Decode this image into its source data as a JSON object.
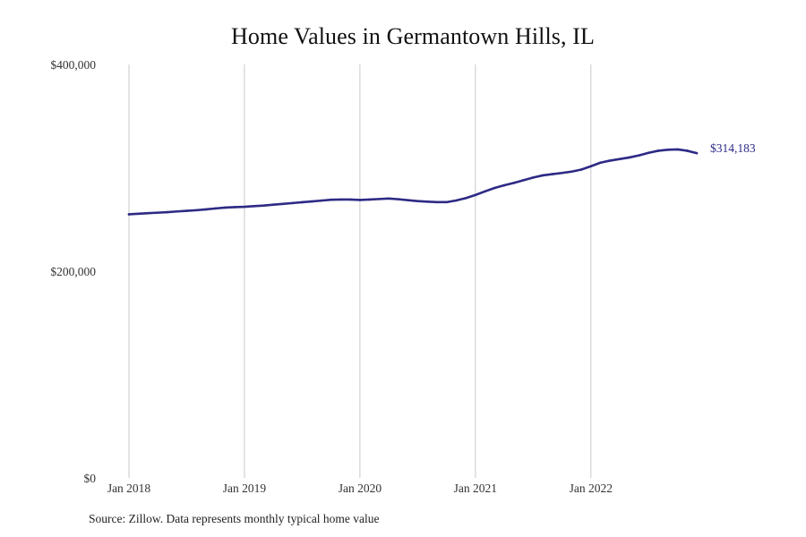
{
  "chart_data": {
    "type": "line",
    "title": "Home Values in Germantown Hills, IL",
    "source": "Source: Zillow. Data represents monthly typical home value",
    "line_color": "#2e2a85",
    "grid_color": "#c9c9c9",
    "grid": {
      "vertical": true,
      "horizontal": false
    },
    "ylim": [
      0,
      400000
    ],
    "y_ticks": [
      {
        "value": 0,
        "label": "$0"
      },
      {
        "value": 200000,
        "label": "$200,000"
      },
      {
        "value": 400000,
        "label": "$400,000"
      }
    ],
    "xlim": [
      "2018-01",
      "2022-12"
    ],
    "x_ticks": [
      {
        "value": "2018-01",
        "label": "Jan 2018"
      },
      {
        "value": "2019-01",
        "label": "Jan 2019"
      },
      {
        "value": "2020-01",
        "label": "Jan 2020"
      },
      {
        "value": "2021-01",
        "label": "Jan 2021"
      },
      {
        "value": "2022-01",
        "label": "Jan 2022"
      }
    ],
    "end_label": "$314,183",
    "series": [
      {
        "x": [
          "2018-01",
          "2018-02",
          "2018-03",
          "2018-04",
          "2018-05",
          "2018-06",
          "2018-07",
          "2018-08",
          "2018-09",
          "2018-10",
          "2018-11",
          "2018-12",
          "2019-01",
          "2019-02",
          "2019-03",
          "2019-04",
          "2019-05",
          "2019-06",
          "2019-07",
          "2019-08",
          "2019-09",
          "2019-10",
          "2019-11",
          "2019-12",
          "2020-01",
          "2020-02",
          "2020-03",
          "2020-04",
          "2020-05",
          "2020-06",
          "2020-07",
          "2020-08",
          "2020-09",
          "2020-10",
          "2020-11",
          "2020-12",
          "2021-01",
          "2021-02",
          "2021-03",
          "2021-04",
          "2021-05",
          "2021-06",
          "2021-07",
          "2021-08",
          "2021-09",
          "2021-10",
          "2021-11",
          "2021-12",
          "2022-01",
          "2022-02",
          "2022-03",
          "2022-04",
          "2022-05",
          "2022-06",
          "2022-07",
          "2022-08",
          "2022-09",
          "2022-10",
          "2022-11",
          "2022-12"
        ],
        "values": [
          255000,
          255600,
          256100,
          256600,
          257100,
          257800,
          258400,
          259000,
          259800,
          260700,
          261500,
          262000,
          262300,
          262900,
          263500,
          264300,
          265100,
          265900,
          266700,
          267500,
          268300,
          269100,
          269300,
          269300,
          268900,
          269300,
          269800,
          270300,
          269600,
          268700,
          267800,
          267300,
          266800,
          266800,
          268400,
          270700,
          273700,
          277200,
          280500,
          283100,
          285400,
          288000,
          290600,
          292700,
          293900,
          295000,
          296300,
          298300,
          301500,
          305000,
          307000,
          308500,
          310000,
          312000,
          314500,
          316500,
          317500,
          317800,
          316500,
          314183
        ]
      }
    ]
  }
}
